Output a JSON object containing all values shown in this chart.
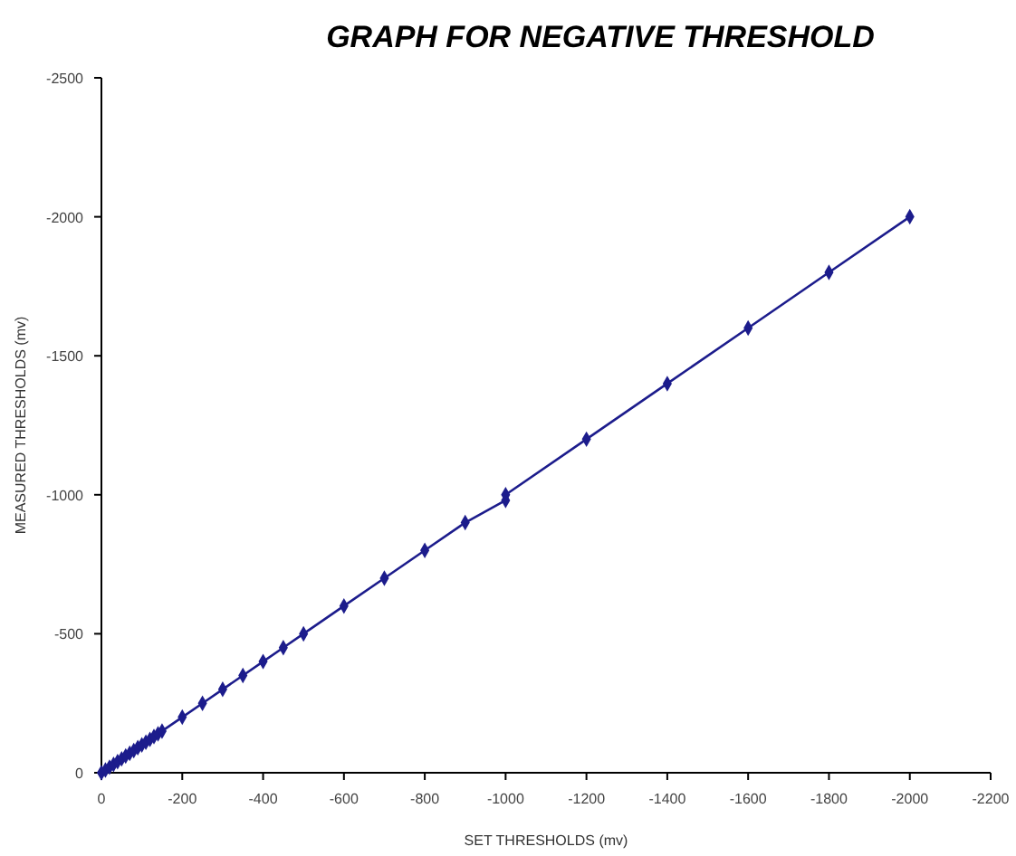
{
  "chart_data": {
    "type": "line",
    "title": "GRAPH FOR NEGATIVE THRESHOLD",
    "xlabel": "SET THRESHOLDS (mv)",
    "ylabel": "MEASURED THRESHOLDS (mv)",
    "x": [
      0,
      -10,
      -20,
      -30,
      -40,
      -50,
      -60,
      -70,
      -80,
      -90,
      -100,
      -110,
      -120,
      -130,
      -140,
      -150,
      -200,
      -250,
      -300,
      -350,
      -400,
      -450,
      -500,
      -600,
      -700,
      -800,
      -900,
      -1000,
      -1000,
      -1200,
      -1400,
      -1600,
      -1800,
      -2000
    ],
    "series": [
      {
        "color": "#1c1c8c",
        "values": [
          0,
          -10,
          -20,
          -30,
          -40,
          -50,
          -60,
          -70,
          -80,
          -90,
          -100,
          -110,
          -120,
          -130,
          -140,
          -150,
          -200,
          -250,
          -300,
          -350,
          -400,
          -450,
          -500,
          -600,
          -700,
          -800,
          -900,
          -980,
          -1000,
          -1200,
          -1400,
          -1600,
          -1800,
          -2000
        ]
      }
    ],
    "xlim": [
      0,
      -2200
    ],
    "xticks": [
      0,
      -200,
      -400,
      -600,
      -800,
      -1000,
      -1200,
      -1400,
      -1600,
      -1800,
      -2000,
      -2200
    ],
    "ylim": [
      0,
      -2500
    ],
    "yticks": [
      0,
      -500,
      -1000,
      -1500,
      -2000,
      -2500
    ],
    "marker": "diamond",
    "line_style": "solid"
  }
}
